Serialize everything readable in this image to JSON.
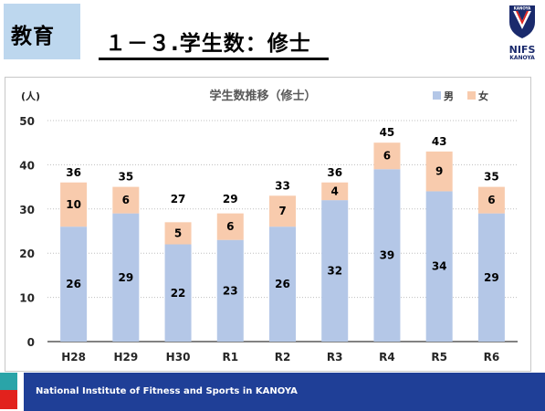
{
  "header": {
    "section_tag": "教育",
    "slide_title": "１－３.学生数：修士"
  },
  "logo": {
    "badge_text": "KANOYA",
    "line1": "NIFS",
    "line2": "KANOYA"
  },
  "footer": {
    "text": "National Institute of Fitness and Sports in KANOYA"
  },
  "colors": {
    "male": "#b4c7e7",
    "female": "#f8cbad",
    "tag_bg": "#bdd7ee",
    "footer_bg": "#1f3f97",
    "footer_teal": "#2aa4a8",
    "footer_red": "#e2221d"
  },
  "chart_data": {
    "type": "bar",
    "stacked": true,
    "title": "学生数推移（修士）",
    "ylabel": "(人)",
    "xlabel": "",
    "ylim": [
      0,
      50
    ],
    "yticks": [
      0,
      10,
      20,
      30,
      40,
      50
    ],
    "grid": true,
    "legend_position": "top-right",
    "categories": [
      "H28",
      "H29",
      "H30",
      "R1",
      "R2",
      "R3",
      "R4",
      "R5",
      "R6"
    ],
    "series": [
      {
        "name": "男",
        "values": [
          26,
          29,
          22,
          23,
          26,
          32,
          39,
          34,
          29
        ]
      },
      {
        "name": "女",
        "values": [
          10,
          6,
          5,
          6,
          7,
          4,
          6,
          9,
          6
        ]
      }
    ],
    "totals": [
      36,
      35,
      27,
      29,
      33,
      36,
      45,
      43,
      35
    ]
  }
}
